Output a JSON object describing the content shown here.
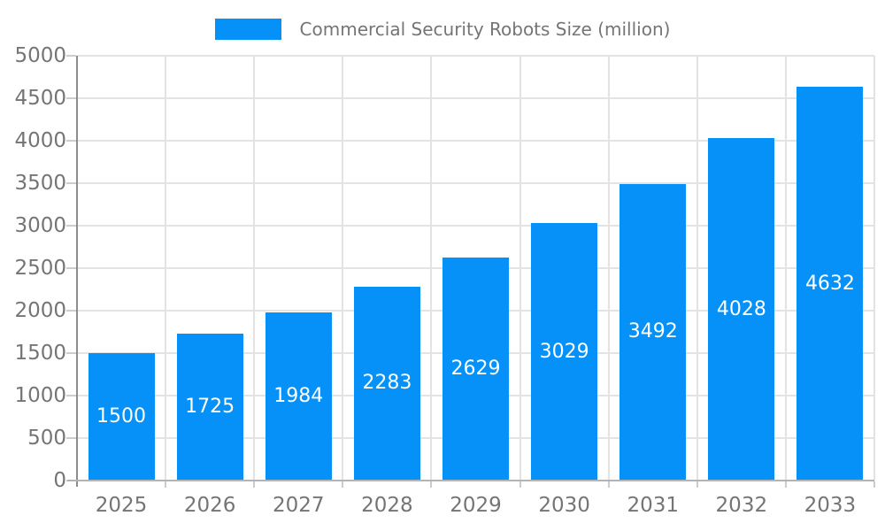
{
  "chart_data": {
    "type": "bar",
    "title": "Commercial Security Robots Size (million)",
    "categories": [
      "2025",
      "2026",
      "2027",
      "2028",
      "2029",
      "2030",
      "2031",
      "2032",
      "2033"
    ],
    "values": [
      1500,
      1725,
      1984,
      2283,
      2629,
      3029,
      3492,
      4028,
      4632
    ],
    "value_labels": [
      "1500",
      "1725",
      "1984",
      "2283",
      "2629",
      "3029",
      "3492",
      "4028",
      "4632"
    ],
    "xlabel": "",
    "ylabel": "",
    "ylim": [
      0,
      5000
    ],
    "ytick_step": 500,
    "yticks": [
      "0",
      "500",
      "1000",
      "1500",
      "2000",
      "2500",
      "3000",
      "3500",
      "4000",
      "4500",
      "5000"
    ],
    "grid": "on",
    "legend_position": "top-center",
    "bar_label_position": "center-inside"
  },
  "colors": {
    "bar": "#0591f7",
    "bar_label": "#ffffff",
    "axis_text": "#757575",
    "grid": "#e3e3e3",
    "y_axis_line": "#8c8c8c",
    "x_axis_line": "#b3b3b3",
    "tick": "#cccccc"
  }
}
